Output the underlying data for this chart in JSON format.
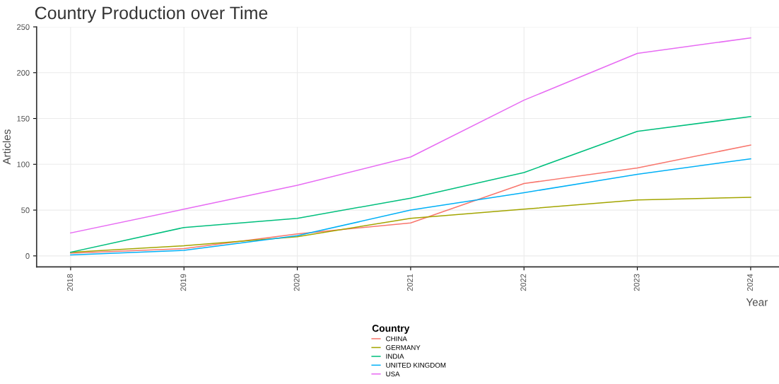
{
  "chart_data": {
    "type": "line",
    "title": "Country Production over Time",
    "xlabel": "Year",
    "ylabel": "Articles",
    "legend_title": "Country",
    "x": [
      2018,
      2019,
      2020,
      2021,
      2022,
      2023,
      2024
    ],
    "series": [
      {
        "name": "CHINA",
        "color": "#f8766d",
        "values": [
          3,
          8,
          24,
          36,
          79,
          96,
          121
        ]
      },
      {
        "name": "GERMANY",
        "color": "#a3a500",
        "values": [
          4,
          11,
          21,
          41,
          51,
          61,
          64
        ]
      },
      {
        "name": "INDIA",
        "color": "#00bf7d",
        "values": [
          4,
          31,
          41,
          63,
          91,
          136,
          152
        ]
      },
      {
        "name": "UNITED KINGDOM",
        "color": "#00b0f6",
        "values": [
          1,
          6,
          22,
          50,
          69,
          89,
          106
        ]
      },
      {
        "name": "USA",
        "color": "#e76bf3",
        "values": [
          25,
          51,
          77,
          108,
          170,
          221,
          238
        ]
      }
    ],
    "xlim": [
      2017.7,
      2024.25
    ],
    "ylim": [
      -12,
      250
    ],
    "xticks": [
      2018,
      2019,
      2020,
      2021,
      2022,
      2023,
      2024
    ],
    "yticks": [
      0,
      50,
      100,
      150,
      200,
      250
    ],
    "grid": true,
    "legend": "bottom",
    "line_style": "solid",
    "marker": "none"
  }
}
